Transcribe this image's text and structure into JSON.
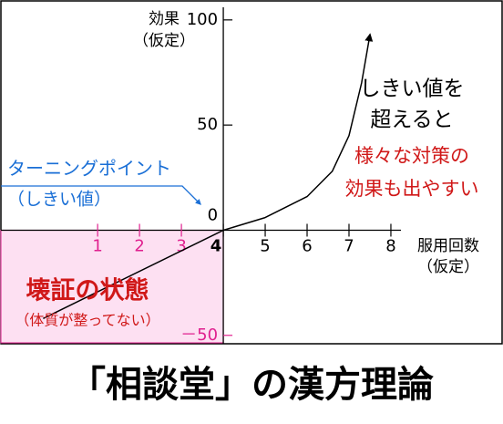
{
  "chart_data": {
    "type": "line",
    "title": "「相談堂」の漢方理論",
    "ylabel": [
      "効果",
      "（仮定）"
    ],
    "xlabel": [
      "服用回数",
      "（仮定）"
    ],
    "xlim": [
      -1.33,
      8.24
    ],
    "ylim": [
      -54,
      106
    ],
    "xticks": [
      1,
      2,
      3,
      4,
      5,
      6,
      7,
      8
    ],
    "yticks": [
      {
        "value": -50,
        "label": "－50"
      },
      0,
      50,
      100
    ],
    "series": [
      {
        "color": "#000000",
        "x": [
          -0.3,
          4,
          5,
          6,
          6.6,
          7,
          7.3,
          7.5
        ],
        "values": [
          -42,
          0,
          6,
          16,
          28,
          45,
          70,
          93
        ]
      }
    ],
    "highlight_region": {
      "x_max": 4,
      "y_max": 0,
      "color": "#fde0f2",
      "label_color": "#e0208f"
    },
    "annotations": {
      "turning_point": {
        "lines": [
          "ターニングポイント",
          "（しきい値）"
        ],
        "color": "#1a6fd6"
      },
      "threshold": {
        "lines": [
          "しきい値を",
          "超えると"
        ],
        "color": "#000000"
      },
      "effect": {
        "lines": [
          "様々な対策の",
          "効果も出やすい"
        ],
        "color": "#d01818"
      },
      "state": {
        "lines": [
          "壊証の状態",
          "（体質が整ってない）"
        ],
        "color": "#d01818"
      }
    }
  }
}
